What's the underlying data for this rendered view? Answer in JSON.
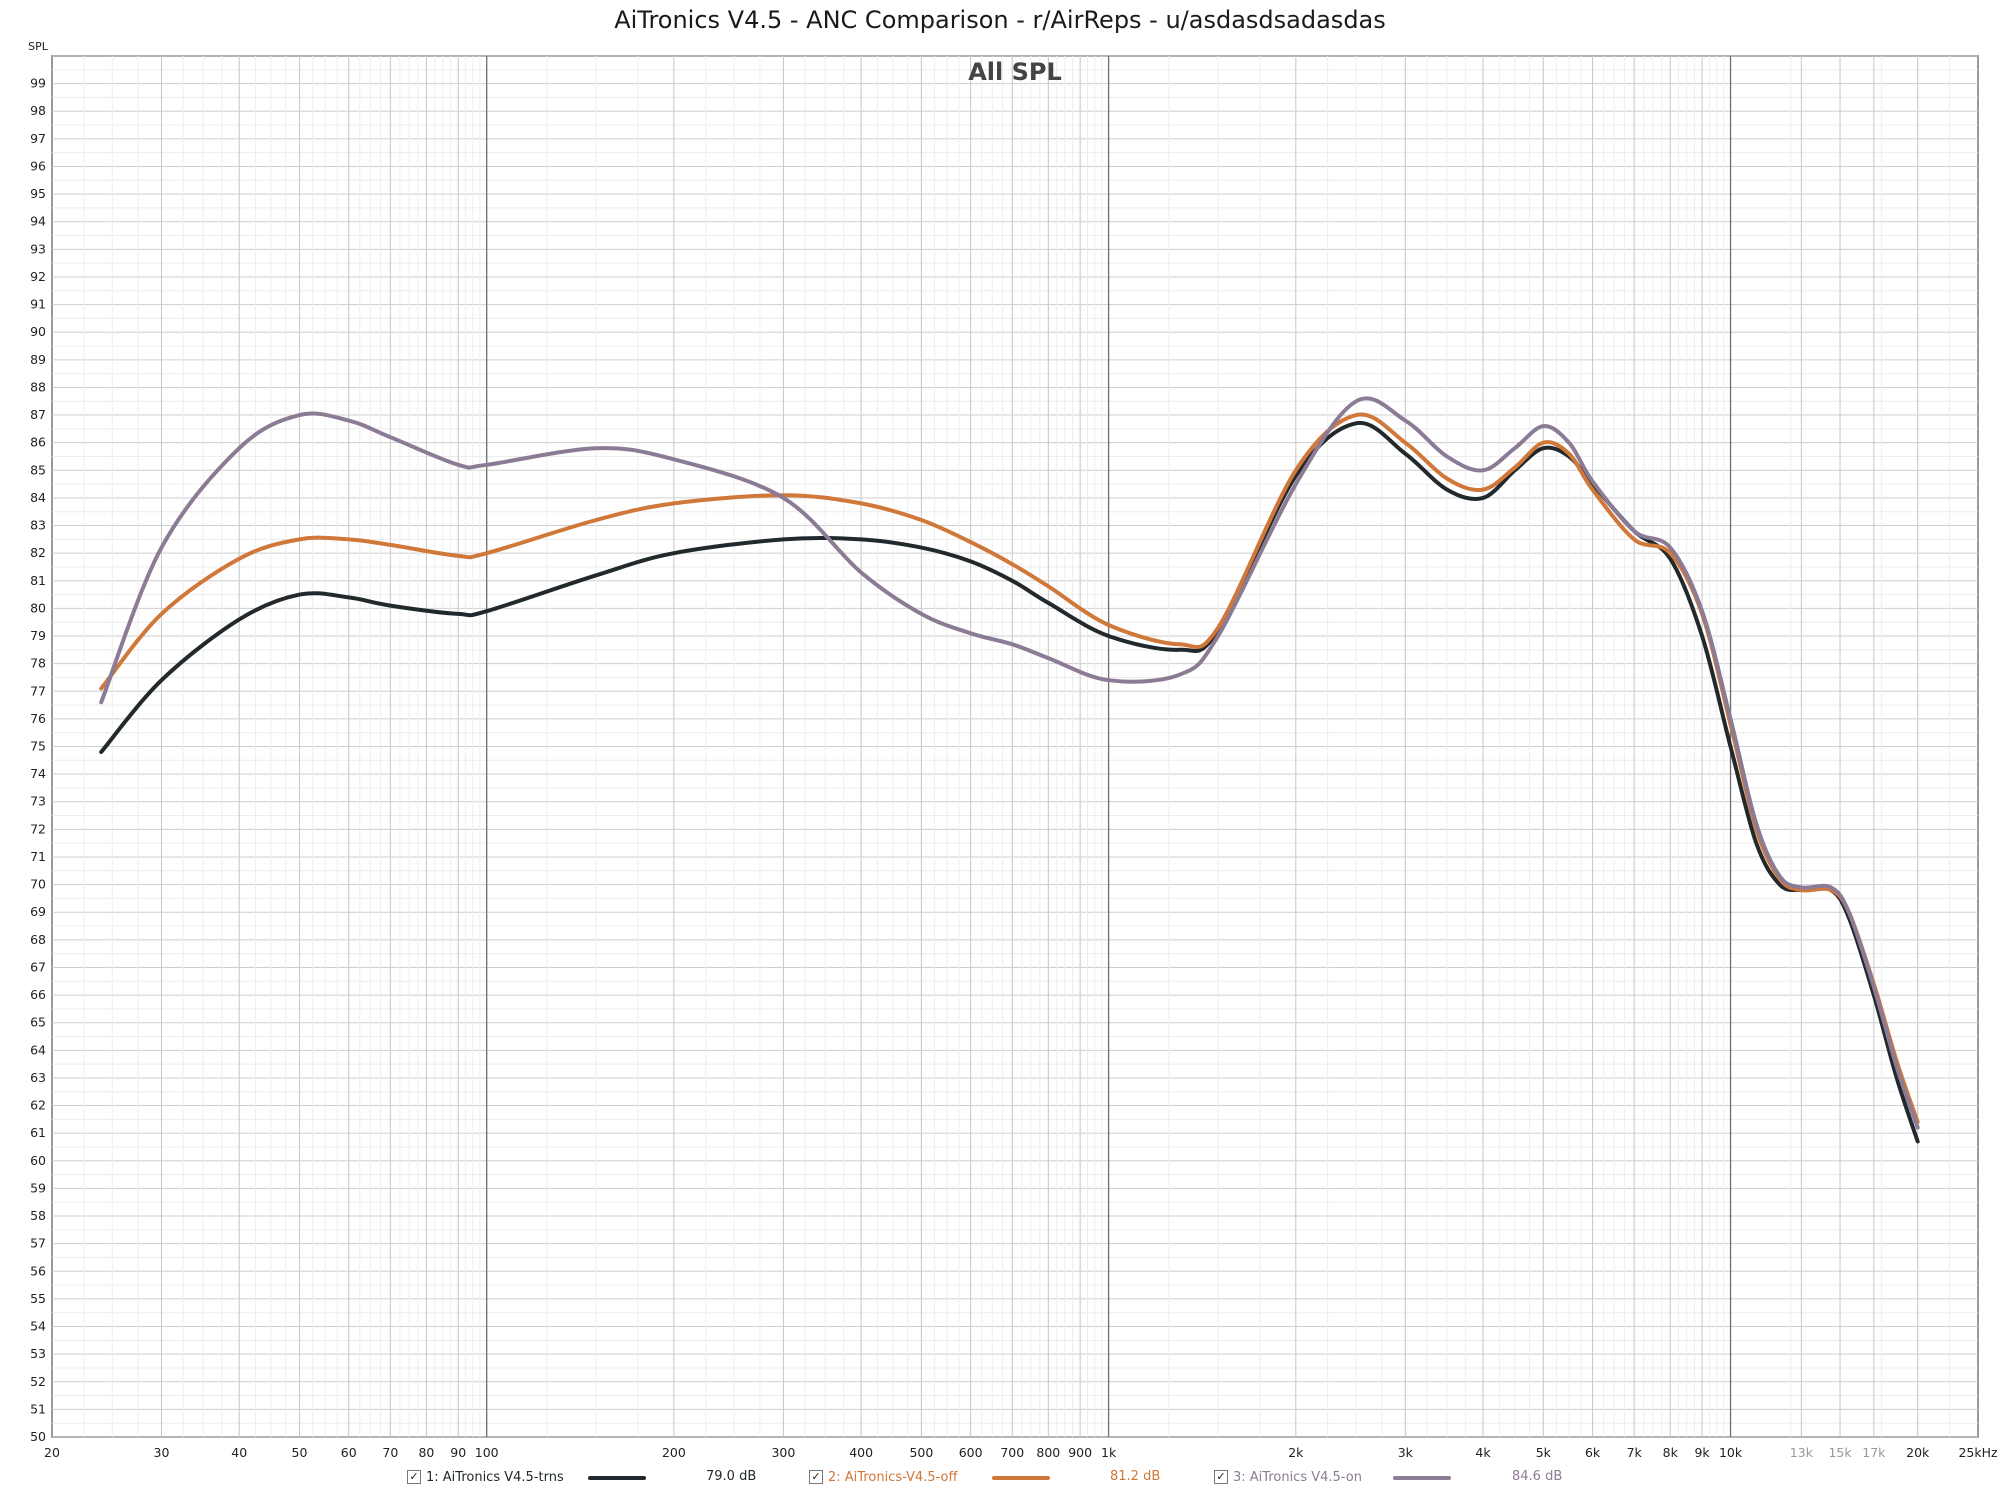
{
  "title": "AiTronics V4.5 - ANC Comparison - r/AirReps - u/asdasdsadasdas",
  "chart_data": {
    "type": "line",
    "panel_title": "All SPL",
    "ylabel": "SPL",
    "x_scale": "log",
    "xlim": [
      20,
      25000
    ],
    "ylim": [
      50,
      100
    ],
    "grid": true,
    "y_ticks": [
      50,
      51,
      52,
      53,
      54,
      55,
      56,
      57,
      58,
      59,
      60,
      61,
      62,
      63,
      64,
      65,
      66,
      67,
      68,
      69,
      70,
      71,
      72,
      73,
      74,
      75,
      76,
      77,
      78,
      79,
      80,
      81,
      82,
      83,
      84,
      85,
      86,
      87,
      88,
      89,
      90,
      91,
      92,
      93,
      94,
      95,
      96,
      97,
      98,
      99
    ],
    "x_ticks": [
      {
        "v": 20,
        "label": "20"
      },
      {
        "v": 30,
        "label": "30"
      },
      {
        "v": 40,
        "label": "40"
      },
      {
        "v": 50,
        "label": "50"
      },
      {
        "v": 60,
        "label": "60"
      },
      {
        "v": 70,
        "label": "70"
      },
      {
        "v": 80,
        "label": "80"
      },
      {
        "v": 90,
        "label": "90"
      },
      {
        "v": 100,
        "label": "100"
      },
      {
        "v": 200,
        "label": "200"
      },
      {
        "v": 300,
        "label": "300"
      },
      {
        "v": 400,
        "label": "400"
      },
      {
        "v": 500,
        "label": "500"
      },
      {
        "v": 600,
        "label": "600"
      },
      {
        "v": 700,
        "label": "700"
      },
      {
        "v": 800,
        "label": "800"
      },
      {
        "v": 900,
        "label": "900"
      },
      {
        "v": 1000,
        "label": "1k"
      },
      {
        "v": 2000,
        "label": "2k"
      },
      {
        "v": 3000,
        "label": "3k"
      },
      {
        "v": 4000,
        "label": "4k"
      },
      {
        "v": 5000,
        "label": "5k"
      },
      {
        "v": 6000,
        "label": "6k"
      },
      {
        "v": 7000,
        "label": "7k"
      },
      {
        "v": 8000,
        "label": "8k"
      },
      {
        "v": 9000,
        "label": "9k"
      },
      {
        "v": 10000,
        "label": "10k"
      },
      {
        "v": 13000,
        "label": "13k"
      },
      {
        "v": 15000,
        "label": "15k"
      },
      {
        "v": 17000,
        "label": "17k"
      },
      {
        "v": 20000,
        "label": "20k"
      },
      {
        "v": 25000,
        "label": "25kHz"
      }
    ],
    "series": [
      {
        "name": "1: AiTronics V4.5-trns",
        "color": "#22292d",
        "avg": "79.0 dB",
        "points": [
          [
            24,
            74.8
          ],
          [
            30,
            77.4
          ],
          [
            40,
            79.6
          ],
          [
            50,
            80.5
          ],
          [
            60,
            80.4
          ],
          [
            70,
            80.1
          ],
          [
            90,
            79.8
          ],
          [
            100,
            79.9
          ],
          [
            150,
            81.2
          ],
          [
            200,
            82.0
          ],
          [
            300,
            82.5
          ],
          [
            400,
            82.5
          ],
          [
            500,
            82.2
          ],
          [
            600,
            81.7
          ],
          [
            700,
            81.0
          ],
          [
            800,
            80.2
          ],
          [
            1000,
            79.0
          ],
          [
            1300,
            78.5
          ],
          [
            1500,
            79.2
          ],
          [
            2000,
            84.8
          ],
          [
            2500,
            86.7
          ],
          [
            3000,
            85.6
          ],
          [
            3500,
            84.3
          ],
          [
            4000,
            84.0
          ],
          [
            4500,
            85.0
          ],
          [
            5000,
            85.8
          ],
          [
            5500,
            85.5
          ],
          [
            6000,
            84.5
          ],
          [
            7000,
            82.8
          ],
          [
            8000,
            81.8
          ],
          [
            9000,
            79.0
          ],
          [
            10000,
            75.0
          ],
          [
            11000,
            71.5
          ],
          [
            12000,
            70.0
          ],
          [
            13000,
            69.8
          ],
          [
            14500,
            69.8
          ],
          [
            15500,
            68.8
          ],
          [
            17000,
            66.0
          ],
          [
            18500,
            63.0
          ],
          [
            20000,
            60.7
          ]
        ]
      },
      {
        "name": "2: AiTronics-V4.5-off",
        "color": "#d0773a",
        "avg": "81.2 dB",
        "points": [
          [
            24,
            77.1
          ],
          [
            30,
            79.8
          ],
          [
            40,
            81.8
          ],
          [
            50,
            82.5
          ],
          [
            60,
            82.5
          ],
          [
            70,
            82.3
          ],
          [
            90,
            81.9
          ],
          [
            100,
            82.0
          ],
          [
            150,
            83.2
          ],
          [
            200,
            83.8
          ],
          [
            300,
            84.1
          ],
          [
            400,
            83.8
          ],
          [
            500,
            83.2
          ],
          [
            600,
            82.4
          ],
          [
            700,
            81.6
          ],
          [
            800,
            80.8
          ],
          [
            1000,
            79.4
          ],
          [
            1300,
            78.7
          ],
          [
            1500,
            79.3
          ],
          [
            2000,
            85.0
          ],
          [
            2500,
            87.0
          ],
          [
            3000,
            86.0
          ],
          [
            3500,
            84.7
          ],
          [
            4000,
            84.3
          ],
          [
            4500,
            85.1
          ],
          [
            5000,
            86.0
          ],
          [
            5500,
            85.6
          ],
          [
            6000,
            84.3
          ],
          [
            7000,
            82.5
          ],
          [
            8000,
            82.0
          ],
          [
            9000,
            79.8
          ],
          [
            10000,
            75.8
          ],
          [
            11000,
            72.0
          ],
          [
            12000,
            70.2
          ],
          [
            13000,
            69.8
          ],
          [
            14500,
            69.8
          ],
          [
            15500,
            69.0
          ],
          [
            17000,
            66.4
          ],
          [
            18500,
            63.6
          ],
          [
            20000,
            61.4
          ]
        ]
      },
      {
        "name": "3: AiTronics V4.5-on",
        "color": "#8c7b94",
        "avg": "84.6 dB",
        "points": [
          [
            24,
            76.6
          ],
          [
            30,
            82.2
          ],
          [
            40,
            85.8
          ],
          [
            50,
            87.0
          ],
          [
            60,
            86.8
          ],
          [
            70,
            86.2
          ],
          [
            90,
            85.2
          ],
          [
            100,
            85.2
          ],
          [
            150,
            85.8
          ],
          [
            200,
            85.4
          ],
          [
            300,
            84.0
          ],
          [
            400,
            81.3
          ],
          [
            500,
            79.8
          ],
          [
            600,
            79.1
          ],
          [
            700,
            78.7
          ],
          [
            800,
            78.2
          ],
          [
            1000,
            77.4
          ],
          [
            1300,
            77.6
          ],
          [
            1500,
            79.0
          ],
          [
            2000,
            84.5
          ],
          [
            2500,
            87.5
          ],
          [
            3000,
            86.8
          ],
          [
            3500,
            85.5
          ],
          [
            4000,
            85.0
          ],
          [
            4500,
            85.8
          ],
          [
            5000,
            86.6
          ],
          [
            5500,
            86.0
          ],
          [
            6000,
            84.6
          ],
          [
            7000,
            82.8
          ],
          [
            8000,
            82.2
          ],
          [
            9000,
            79.9
          ],
          [
            10000,
            76.0
          ],
          [
            11000,
            72.2
          ],
          [
            12000,
            70.3
          ],
          [
            13000,
            69.9
          ],
          [
            14500,
            69.9
          ],
          [
            15500,
            69.0
          ],
          [
            17000,
            66.3
          ],
          [
            18500,
            63.4
          ],
          [
            20000,
            61.2
          ]
        ]
      }
    ]
  }
}
